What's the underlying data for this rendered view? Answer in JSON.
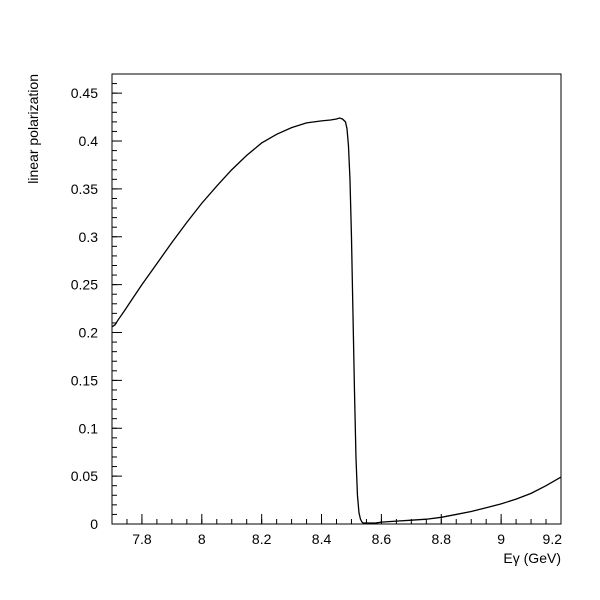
{
  "chart_data": {
    "type": "line",
    "title": "",
    "xlabel": "Eγ (GeV)",
    "ylabel": "linear polarization",
    "xlim": [
      7.7,
      9.2
    ],
    "ylim": [
      0,
      0.47
    ],
    "x_ticks": [
      {
        "value": 7.8,
        "label": "7.8"
      },
      {
        "value": 8.0,
        "label": "8"
      },
      {
        "value": 8.2,
        "label": "8.2"
      },
      {
        "value": 8.4,
        "label": "8.4"
      },
      {
        "value": 8.6,
        "label": "8.6"
      },
      {
        "value": 8.8,
        "label": "8.8"
      },
      {
        "value": 9.0,
        "label": "9"
      },
      {
        "value": 9.2,
        "label": "9.2"
      }
    ],
    "y_ticks": [
      {
        "value": 0,
        "label": "0"
      },
      {
        "value": 0.05,
        "label": "0.05"
      },
      {
        "value": 0.1,
        "label": "0.1"
      },
      {
        "value": 0.15,
        "label": "0.15"
      },
      {
        "value": 0.2,
        "label": "0.2"
      },
      {
        "value": 0.25,
        "label": "0.25"
      },
      {
        "value": 0.3,
        "label": "0.3"
      },
      {
        "value": 0.35,
        "label": "0.35"
      },
      {
        "value": 0.4,
        "label": "0.4"
      },
      {
        "value": 0.45,
        "label": "0.45"
      }
    ],
    "grid": false,
    "series": [
      {
        "color": "#000000",
        "x": [
          7.7,
          7.71,
          7.72,
          7.74,
          7.77,
          7.8,
          7.85,
          7.9,
          7.95,
          8.0,
          8.05,
          8.1,
          8.15,
          8.2,
          8.25,
          8.3,
          8.35,
          8.4,
          8.43,
          8.45,
          8.46,
          8.47,
          8.48,
          8.485,
          8.49,
          8.495,
          8.5,
          8.505,
          8.51,
          8.515,
          8.52,
          8.525,
          8.53,
          8.535,
          8.54,
          8.545,
          8.55,
          8.56,
          8.58,
          8.6,
          8.65,
          8.7,
          8.75,
          8.8,
          8.85,
          8.9,
          8.95,
          9.0,
          9.05,
          9.1,
          9.15,
          9.2
        ],
        "y": [
          0.206,
          0.208,
          0.213,
          0.222,
          0.236,
          0.25,
          0.272,
          0.294,
          0.315,
          0.335,
          0.353,
          0.37,
          0.385,
          0.398,
          0.407,
          0.414,
          0.419,
          0.421,
          0.422,
          0.423,
          0.424,
          0.423,
          0.42,
          0.413,
          0.395,
          0.36,
          0.3,
          0.22,
          0.14,
          0.07,
          0.03,
          0.012,
          0.005,
          0.002,
          0.001,
          0.001,
          0.001,
          0.001,
          0.001,
          0.002,
          0.003,
          0.004,
          0.005,
          0.007,
          0.01,
          0.013,
          0.017,
          0.021,
          0.026,
          0.032,
          0.04,
          0.049
        ]
      }
    ]
  }
}
